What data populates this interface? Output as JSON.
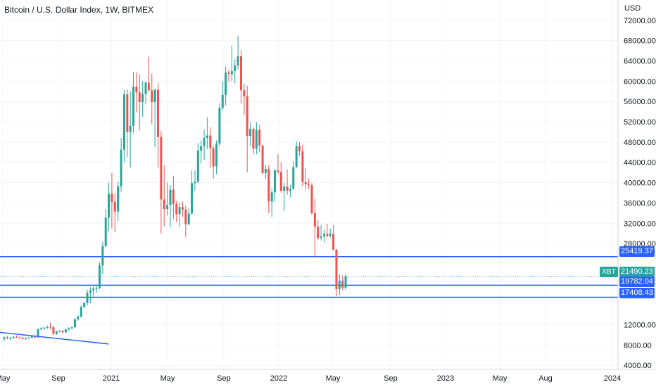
{
  "header": {
    "title": "Bitcoin / U.S. Dollar Index, 1W, BITMEX",
    "currency": "USD"
  },
  "colors": {
    "up": "#26a69a",
    "down": "#ef5350",
    "level_line": "#2962ff",
    "current_line": "#26a69a"
  },
  "price_tags": {
    "symbol": "XBT",
    "current": "21490.23",
    "level1": "25419.37",
    "level2": "19782.04",
    "level3": "17408.43"
  },
  "chart_data": {
    "type": "candlestick",
    "y_axis": {
      "scale": "linear",
      "ylim": [
        2500,
        73500
      ],
      "ticks": [
        "72000.00",
        "68000.00",
        "64000.00",
        "60000.00",
        "56000.00",
        "52000.00",
        "48000.00",
        "44000.00",
        "40000.00",
        "36000.00",
        "32000.00",
        "28000.00",
        "12000.00",
        "8000.00",
        "4000.00"
      ]
    },
    "x_axis": {
      "ticks": [
        "May",
        "Sep",
        "2021",
        "May",
        "Sep",
        "2022",
        "May",
        "Sep",
        "2023",
        "May",
        "Aug",
        "2024"
      ]
    },
    "horizontal_levels": [
      25419.37,
      19782.04,
      17408.43
    ],
    "current_price": 21490.23,
    "trendline": {
      "start": [
        0,
        10500
      ],
      "end": [
        34,
        8200
      ]
    },
    "candles": [
      [
        9200,
        9700,
        8800,
        9500
      ],
      [
        9500,
        9800,
        9100,
        9300
      ],
      [
        9300,
        9600,
        9000,
        9400
      ],
      [
        9400,
        9800,
        9200,
        9600
      ],
      [
        9600,
        9900,
        9400,
        9500
      ],
      [
        9500,
        9700,
        9300,
        9400
      ],
      [
        9400,
        9600,
        9100,
        9200
      ],
      [
        9200,
        9500,
        9000,
        9350
      ],
      [
        9350,
        9600,
        9200,
        9450
      ],
      [
        9450,
        9800,
        9300,
        9700
      ],
      [
        9700,
        9900,
        9400,
        9500
      ],
      [
        9500,
        11300,
        9400,
        11100
      ],
      [
        11100,
        11500,
        10900,
        11300
      ],
      [
        11300,
        11600,
        11000,
        11400
      ],
      [
        11400,
        11800,
        11200,
        11600
      ],
      [
        11600,
        12400,
        11100,
        11500
      ],
      [
        11500,
        11700,
        9900,
        10200
      ],
      [
        10200,
        10800,
        10000,
        10700
      ],
      [
        10700,
        11000,
        10500,
        10750
      ],
      [
        10750,
        10950,
        10300,
        10500
      ],
      [
        10500,
        11300,
        10400,
        11050
      ],
      [
        11050,
        11500,
        10800,
        11300
      ],
      [
        11300,
        11700,
        11100,
        11500
      ],
      [
        11500,
        13200,
        11400,
        13100
      ],
      [
        13100,
        13900,
        12800,
        13600
      ],
      [
        13600,
        15900,
        13400,
        15500
      ],
      [
        15500,
        16500,
        15300,
        16300
      ],
      [
        16300,
        18900,
        15800,
        18300
      ],
      [
        18300,
        19400,
        16200,
        18800
      ],
      [
        18800,
        19600,
        17500,
        19100
      ],
      [
        19100,
        19800,
        18300,
        19300
      ],
      [
        19300,
        24300,
        19000,
        23700
      ],
      [
        23700,
        28400,
        21900,
        27500
      ],
      [
        27500,
        34800,
        27300,
        33100
      ],
      [
        33100,
        40000,
        30400,
        37800
      ],
      [
        37800,
        41900,
        31000,
        36200
      ],
      [
        36200,
        38000,
        30200,
        34300
      ],
      [
        34300,
        40200,
        32400,
        39300
      ],
      [
        39300,
        48800,
        38200,
        46500
      ],
      [
        46500,
        58300,
        44000,
        57400
      ],
      [
        57400,
        58400,
        45000,
        50000
      ],
      [
        50000,
        58000,
        43000,
        51200
      ],
      [
        51200,
        61800,
        49800,
        58900
      ],
      [
        58900,
        61700,
        53900,
        57800
      ],
      [
        57800,
        61300,
        50300,
        55900
      ],
      [
        55900,
        60000,
        53000,
        57500
      ],
      [
        57500,
        60000,
        55400,
        59700
      ],
      [
        59700,
        64800,
        58000,
        58200
      ],
      [
        58200,
        61500,
        51500,
        55900
      ],
      [
        55900,
        58500,
        47000,
        58300
      ],
      [
        58300,
        59600,
        43000,
        49000
      ],
      [
        49000,
        50200,
        30000,
        36700
      ],
      [
        36700,
        43400,
        31400,
        34800
      ],
      [
        34800,
        40000,
        33500,
        35600
      ],
      [
        35600,
        39500,
        31200,
        38600
      ],
      [
        38600,
        41300,
        32800,
        35800
      ],
      [
        35800,
        36400,
        32200,
        33800
      ],
      [
        33800,
        36100,
        31200,
        35200
      ],
      [
        35200,
        36300,
        33300,
        34700
      ],
      [
        34700,
        35500,
        29300,
        31800
      ],
      [
        31800,
        35000,
        31600,
        33900
      ],
      [
        33900,
        42400,
        33700,
        39900
      ],
      [
        39900,
        42400,
        38400,
        40200
      ],
      [
        40200,
        47800,
        39900,
        46300
      ],
      [
        46300,
        48300,
        43800,
        47200
      ],
      [
        47200,
        50500,
        44400,
        48800
      ],
      [
        48800,
        52900,
        46600,
        49300
      ],
      [
        49300,
        50900,
        42900,
        46800
      ],
      [
        46800,
        47300,
        40800,
        43200
      ],
      [
        43200,
        48300,
        41700,
        47700
      ],
      [
        47700,
        55700,
        47200,
        54700
      ],
      [
        54700,
        60000,
        54200,
        57300
      ],
      [
        57300,
        62900,
        55200,
        61700
      ],
      [
        61700,
        62300,
        59800,
        61400
      ],
      [
        61400,
        67000,
        60000,
        62000
      ],
      [
        62000,
        64300,
        59600,
        63100
      ],
      [
        63100,
        69000,
        62300,
        64900
      ],
      [
        64900,
        66200,
        55600,
        58200
      ],
      [
        58200,
        59500,
        53300,
        57000
      ],
      [
        57000,
        59100,
        42000,
        49200
      ],
      [
        49200,
        51900,
        47300,
        50600
      ],
      [
        50600,
        50900,
        45600,
        46700
      ],
      [
        46700,
        51900,
        45600,
        50400
      ],
      [
        50400,
        51400,
        46000,
        47300
      ],
      [
        47300,
        47500,
        41700,
        41900
      ],
      [
        41900,
        43400,
        40800,
        42700
      ],
      [
        42700,
        43500,
        34000,
        36300
      ],
      [
        36300,
        38900,
        33200,
        38100
      ],
      [
        38100,
        42700,
        36200,
        42400
      ],
      [
        42400,
        45600,
        41800,
        42100
      ],
      [
        42100,
        44100,
        38000,
        38400
      ],
      [
        38400,
        40000,
        34400,
        39200
      ],
      [
        39200,
        42600,
        37600,
        38400
      ],
      [
        38400,
        39600,
        37100,
        38800
      ],
      [
        38800,
        44200,
        38600,
        43100
      ],
      [
        43100,
        48200,
        42900,
        47200
      ],
      [
        47200,
        48000,
        45300,
        46200
      ],
      [
        46200,
        47500,
        39300,
        40100
      ],
      [
        40100,
        42800,
        38600,
        39700
      ],
      [
        39700,
        40800,
        38700,
        39500
      ],
      [
        39500,
        39900,
        33700,
        34000
      ],
      [
        34000,
        36800,
        25300,
        31300
      ],
      [
        31300,
        32600,
        28700,
        29100
      ],
      [
        29100,
        31700,
        28600,
        29400
      ],
      [
        29400,
        30700,
        28200,
        29900
      ],
      [
        29900,
        31900,
        29200,
        29500
      ],
      [
        29500,
        30900,
        29100,
        29900
      ],
      [
        29900,
        31700,
        26600,
        26800
      ],
      [
        26800,
        26900,
        17600,
        19000
      ],
      [
        19000,
        21900,
        17800,
        20700
      ],
      [
        20700,
        21700,
        18800,
        19300
      ],
      [
        19300,
        22000,
        18900,
        21500
      ]
    ]
  }
}
